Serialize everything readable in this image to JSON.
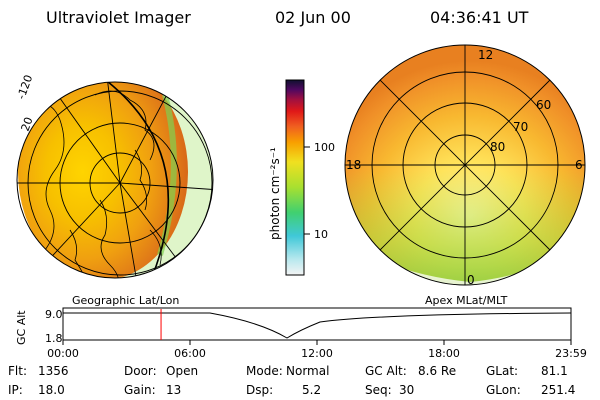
{
  "header": {
    "title": "Ultraviolet Imager",
    "date": "02 Jun 00",
    "time": "04:36:41 UT"
  },
  "colorbar": {
    "unit_label": "photon cm⁻²s⁻¹",
    "tick_100": "100",
    "tick_10": "10"
  },
  "left_panel": {
    "caption": "Geographic Lat/Lon",
    "edge_labels": [
      "-120",
      "20"
    ]
  },
  "right_panel": {
    "caption": "Apex MLat/MLT",
    "mlt": {
      "top": "12",
      "left": "18",
      "right": "6",
      "bottom": "0"
    },
    "mlat": [
      "60",
      "70",
      "80"
    ]
  },
  "altitude": {
    "axis_label": "GC Alt",
    "ymax": "9.0",
    "ymin": "1.8",
    "xticks": [
      "00:00",
      "06:00",
      "12:00",
      "18:00",
      "23:59"
    ],
    "current_time_fraction": 0.193
  },
  "info": {
    "flt_label": "Flt:",
    "flt": "1356",
    "ip_label": "IP:",
    "ip": "18.0",
    "door_label": "Door:",
    "door": "Open",
    "gain_label": "Gain:",
    "gain": "13",
    "mode_label": "Mode:",
    "mode": "Normal",
    "dsp_label": "Dsp:",
    "dsp": "5.2",
    "gcalt_label": "GC Alt:",
    "gcalt": "8.6 Re",
    "seq_label": "Seq:",
    "seq": "30",
    "glat_label": "GLat:",
    "glat": "81.1",
    "glon_label": "GLon:",
    "glon": "251.4"
  },
  "colors": {
    "marker": "#ff0000"
  }
}
